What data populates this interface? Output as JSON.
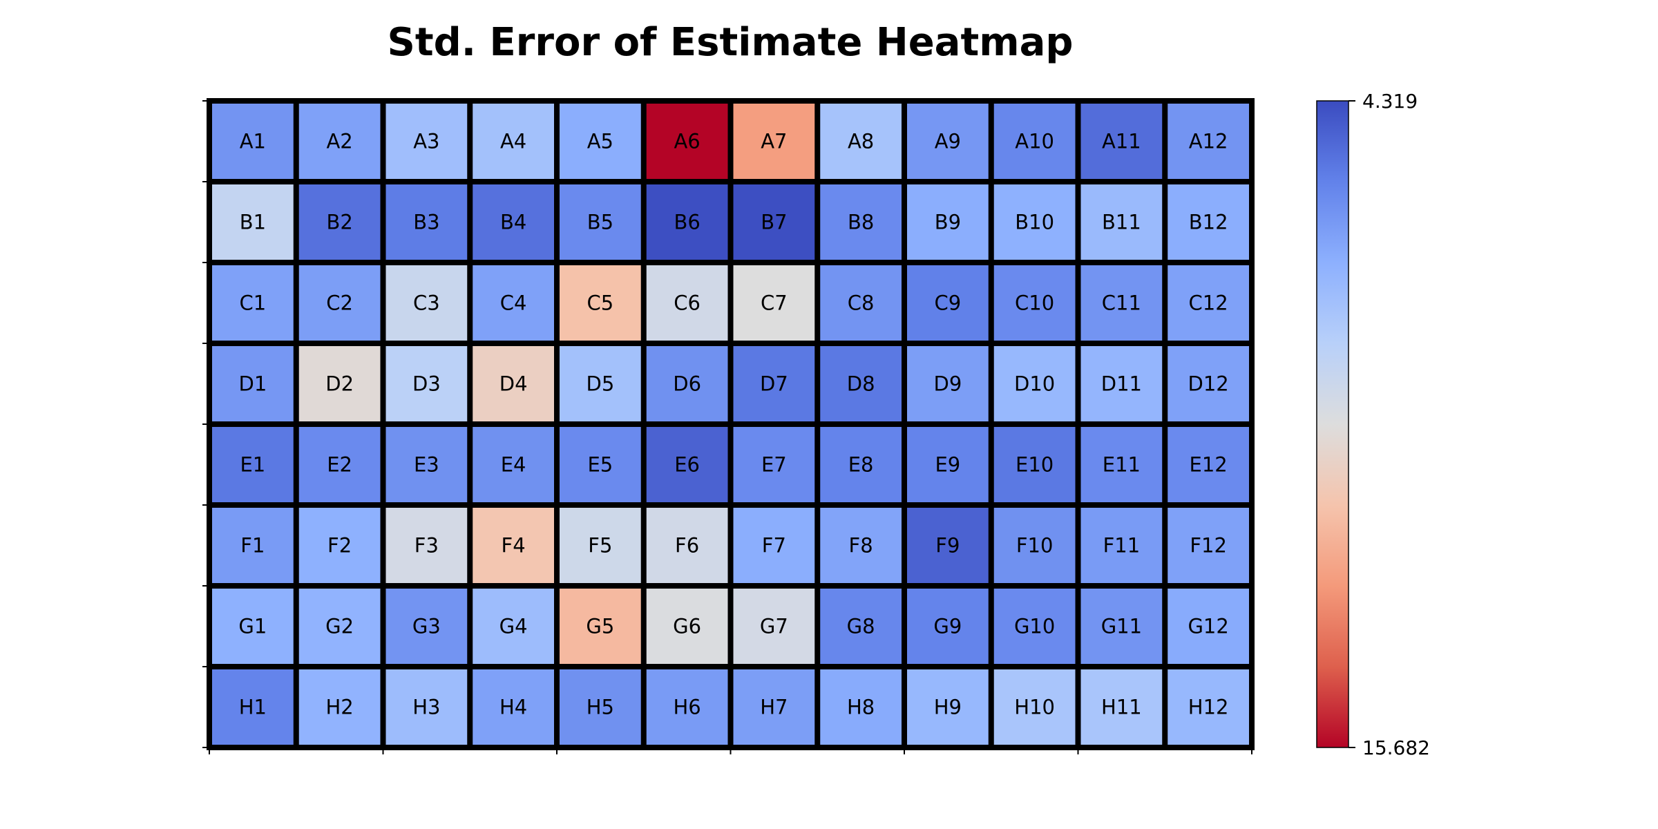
{
  "chart_data": {
    "type": "heatmap",
    "title": "Std. Error of Estimate Heatmap",
    "xlabel": "",
    "ylabel": "",
    "colormap": "coolwarm_r",
    "grid": true,
    "rows": [
      "A",
      "B",
      "C",
      "D",
      "E",
      "F",
      "G",
      "H"
    ],
    "columns": [
      "1",
      "2",
      "3",
      "4",
      "5",
      "6",
      "7",
      "8",
      "9",
      "10",
      "11",
      "12"
    ],
    "labels": [
      [
        "A1",
        "A2",
        "A3",
        "A4",
        "A5",
        "A6",
        "A7",
        "A8",
        "A9",
        "A10",
        "A11",
        "A12"
      ],
      [
        "B1",
        "B2",
        "B3",
        "B4",
        "B5",
        "B6",
        "B7",
        "B8",
        "B9",
        "B10",
        "B11",
        "B12"
      ],
      [
        "C1",
        "C2",
        "C3",
        "C4",
        "C5",
        "C6",
        "C7",
        "C8",
        "C9",
        "C10",
        "C11",
        "C12"
      ],
      [
        "D1",
        "D2",
        "D3",
        "D4",
        "D5",
        "D6",
        "D7",
        "D8",
        "D9",
        "D10",
        "D11",
        "D12"
      ],
      [
        "E1",
        "E2",
        "E3",
        "E4",
        "E5",
        "E6",
        "E7",
        "E8",
        "E9",
        "E10",
        "E11",
        "E12"
      ],
      [
        "F1",
        "F2",
        "F3",
        "F4",
        "F5",
        "F6",
        "F7",
        "F8",
        "F9",
        "F10",
        "F11",
        "F12"
      ],
      [
        "G1",
        "G2",
        "G3",
        "G4",
        "G5",
        "G6",
        "G7",
        "G8",
        "G9",
        "G10",
        "G11",
        "G12"
      ],
      [
        "H1",
        "H2",
        "H3",
        "H4",
        "H5",
        "H6",
        "H7",
        "H8",
        "H9",
        "H10",
        "H11",
        "H12"
      ]
    ],
    "values": [
      [
        6.3,
        6.7,
        7.8,
        7.9,
        7.1,
        15.682,
        12.7,
        8.0,
        6.4,
        5.9,
        5.2,
        6.3
      ],
      [
        9.0,
        5.3,
        5.6,
        5.3,
        6.0,
        4.4,
        4.4,
        6.0,
        7.1,
        7.2,
        7.6,
        7.1
      ],
      [
        6.7,
        6.6,
        9.2,
        6.7,
        11.5,
        9.5,
        10.0,
        6.3,
        5.7,
        6.0,
        6.3,
        6.7
      ],
      [
        6.4,
        10.2,
        8.7,
        10.8,
        7.9,
        6.2,
        5.5,
        5.5,
        6.6,
        7.5,
        7.4,
        6.7
      ],
      [
        5.5,
        6.0,
        6.2,
        6.2,
        6.0,
        4.9,
        6.0,
        5.8,
        5.8,
        5.5,
        6.0,
        6.0
      ],
      [
        6.5,
        7.2,
        9.6,
        11.3,
        9.4,
        9.5,
        7.1,
        6.8,
        4.9,
        6.2,
        6.5,
        6.7
      ],
      [
        7.2,
        7.3,
        6.3,
        7.7,
        11.8,
        9.9,
        9.6,
        5.9,
        5.8,
        6.0,
        6.3,
        7.0
      ],
      [
        5.8,
        7.3,
        7.7,
        6.7,
        6.2,
        6.5,
        6.6,
        7.0,
        7.5,
        8.1,
        8.1,
        7.5
      ]
    ],
    "colorbar": {
      "min_label": "15.682",
      "max_label": "4.319",
      "min_value": 4.319,
      "max_value": 15.682,
      "orientation": "vertical, reversed (max value at bottom)"
    },
    "colors": {
      "low_end": "#3b4cc0",
      "mid": "#dddddd",
      "high_end": "#b40426",
      "cell_border": "#000000"
    }
  }
}
